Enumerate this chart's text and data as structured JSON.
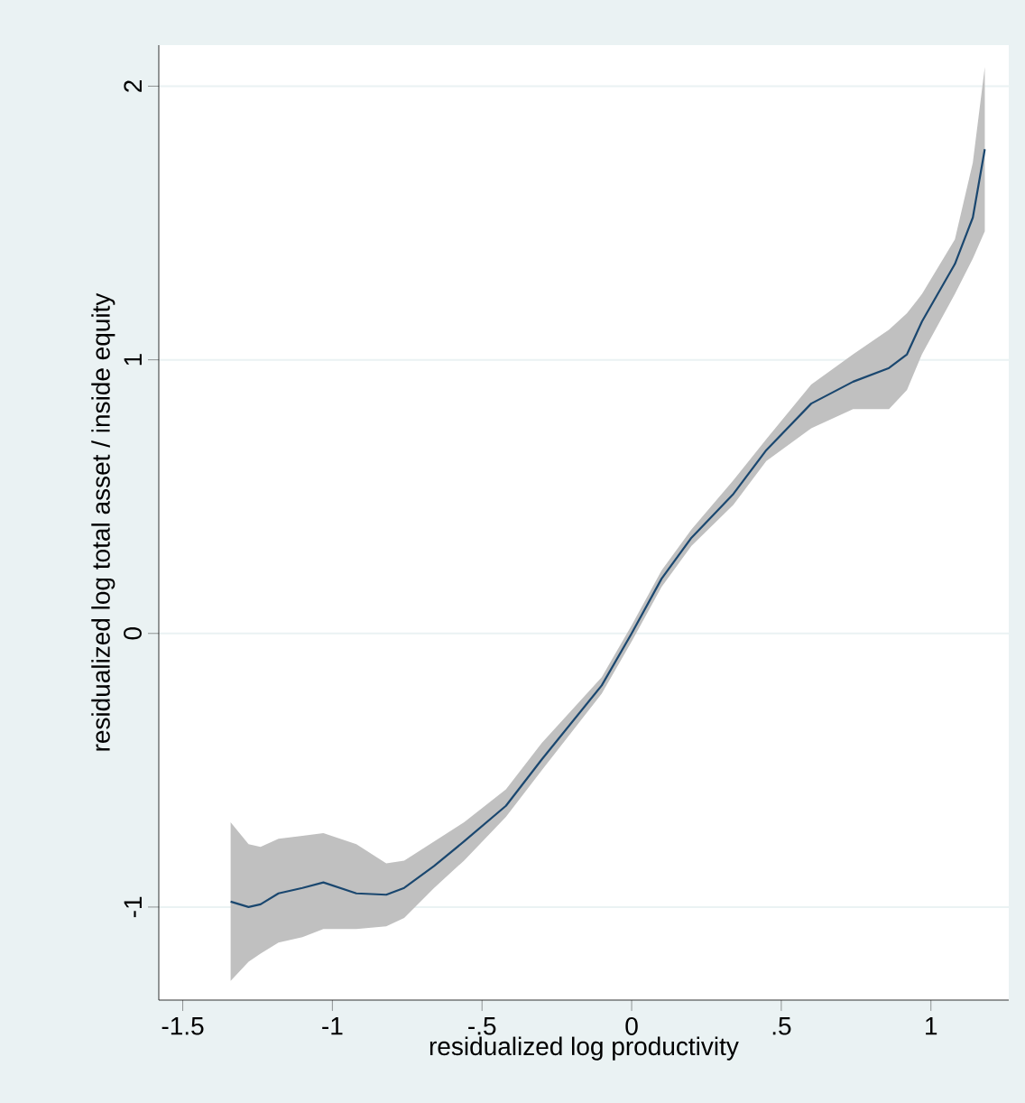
{
  "chart_data": {
    "type": "line",
    "xlabel": "residualized log productivity",
    "ylabel": "residualized log total asset / inside equity",
    "x": [
      -1.34,
      -1.28,
      -1.24,
      -1.18,
      -1.1,
      -1.03,
      -0.92,
      -0.82,
      -0.76,
      -0.66,
      -0.56,
      -0.42,
      -0.3,
      -0.1,
      0.0,
      0.1,
      0.2,
      0.34,
      0.45,
      0.6,
      0.74,
      0.86,
      0.92,
      0.97,
      1.08,
      1.14,
      1.18
    ],
    "series": [
      {
        "color": "#1a476f",
        "values": [
          -0.98,
          -1.0,
          -0.99,
          -0.95,
          -0.93,
          -0.91,
          -0.95,
          -0.955,
          -0.93,
          -0.85,
          -0.76,
          -0.63,
          -0.46,
          -0.19,
          0.0,
          0.2,
          0.35,
          0.51,
          0.67,
          0.84,
          0.92,
          0.97,
          1.02,
          1.14,
          1.35,
          1.52,
          1.77
        ],
        "lower": [
          -1.27,
          -1.2,
          -1.17,
          -1.13,
          -1.11,
          -1.08,
          -1.08,
          -1.07,
          -1.04,
          -0.93,
          -0.83,
          -0.67,
          -0.5,
          -0.22,
          -0.03,
          0.17,
          0.32,
          0.47,
          0.63,
          0.75,
          0.82,
          0.82,
          0.89,
          1.02,
          1.24,
          1.37,
          1.47
        ],
        "upper": [
          -0.69,
          -0.77,
          -0.78,
          -0.75,
          -0.74,
          -0.73,
          -0.77,
          -0.84,
          -0.83,
          -0.76,
          -0.69,
          -0.57,
          -0.4,
          -0.16,
          0.03,
          0.23,
          0.38,
          0.56,
          0.71,
          0.91,
          1.02,
          1.11,
          1.17,
          1.24,
          1.44,
          1.72,
          2.07
        ]
      }
    ],
    "xlim": [
      -1.58,
      1.26
    ],
    "ylim": [
      -1.34,
      2.15
    ],
    "xticks": [
      -1.5,
      -1,
      {
        "value": -0.5,
        "label": "-.5"
      },
      0,
      {
        "value": 0.5,
        "label": ".5"
      },
      1
    ],
    "yticks": [
      -1,
      0,
      1,
      2
    ],
    "grid": "y",
    "marker": "none",
    "line_style": "solid"
  }
}
